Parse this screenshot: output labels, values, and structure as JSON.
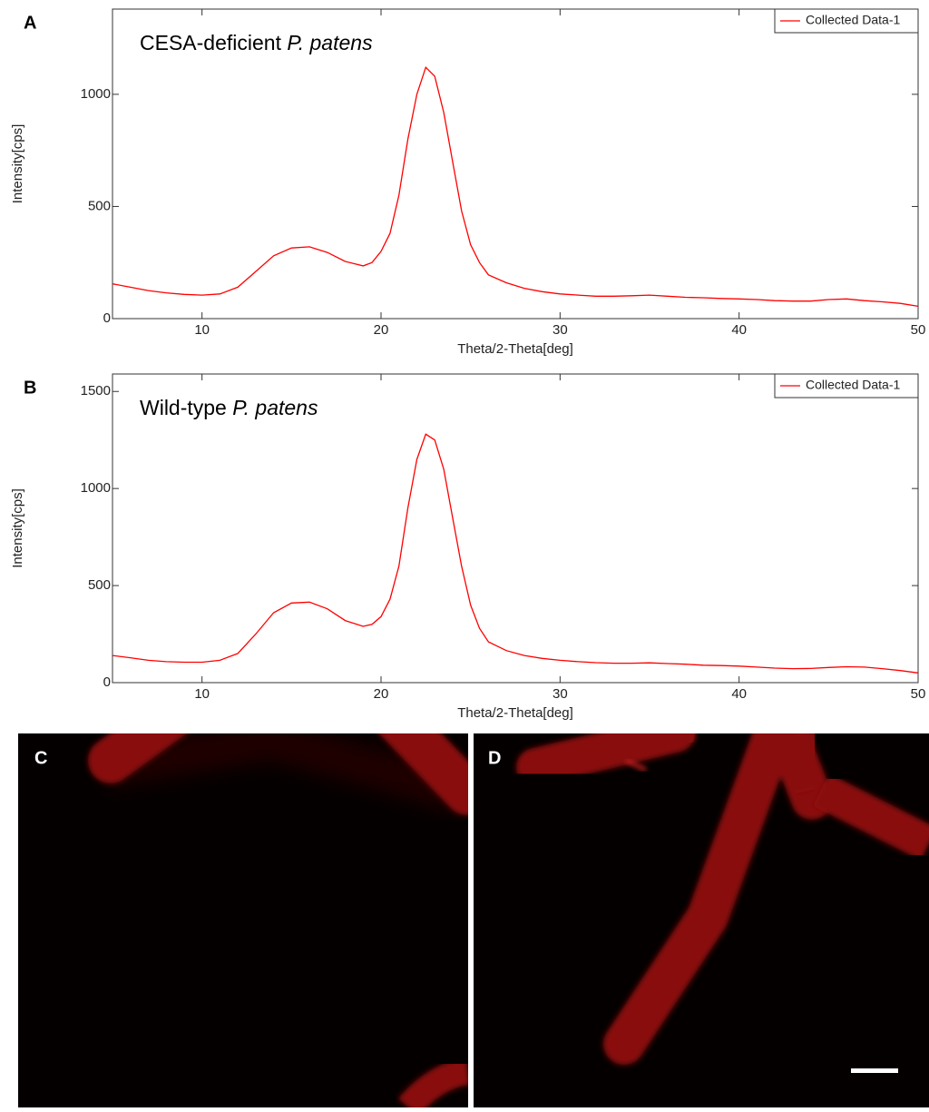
{
  "chart_data": [
    {
      "type": "line",
      "panel": "A",
      "title": "CESA-deficient",
      "title_italic": "P. patens",
      "x_label": "Theta/2-Theta[deg]",
      "y_label": "Intensity[cps]",
      "xlim": [
        5,
        50
      ],
      "ylim": [
        0,
        1380
      ],
      "xticks": [
        10,
        20,
        30,
        40,
        50
      ],
      "yticks": [
        0,
        500,
        1000
      ],
      "x": [
        5,
        6,
        7,
        8,
        9,
        10,
        11,
        12,
        13,
        14,
        15,
        16,
        17,
        18,
        19,
        19.5,
        20,
        20.5,
        21,
        21.5,
        22,
        22.5,
        23,
        23.5,
        24,
        24.5,
        25,
        25.5,
        26,
        27,
        28,
        29,
        30,
        31,
        32,
        33,
        34,
        35,
        36,
        37,
        38,
        39,
        40,
        41,
        42,
        43,
        44,
        45,
        46,
        47,
        48,
        49,
        50
      ],
      "series": [
        {
          "name": "Collected Data-1",
          "color": "#ff0000",
          "values": [
            155,
            140,
            125,
            115,
            108,
            105,
            110,
            140,
            210,
            280,
            315,
            320,
            295,
            255,
            235,
            250,
            300,
            380,
            550,
            800,
            1000,
            1120,
            1080,
            920,
            700,
            480,
            330,
            250,
            195,
            160,
            135,
            120,
            110,
            105,
            100,
            100,
            102,
            105,
            100,
            95,
            93,
            90,
            88,
            85,
            80,
            78,
            78,
            85,
            88,
            80,
            75,
            68,
            55
          ]
        }
      ]
    },
    {
      "type": "line",
      "panel": "B",
      "title": "Wild-type",
      "title_italic": "P. patens",
      "x_label": "Theta/2-Theta[deg]",
      "y_label": "Intensity[cps]",
      "xlim": [
        5,
        50
      ],
      "ylim": [
        0,
        1590
      ],
      "xticks": [
        10,
        20,
        30,
        40,
        50
      ],
      "yticks": [
        0,
        500,
        1000,
        1500
      ],
      "x": [
        5,
        6,
        7,
        8,
        9,
        10,
        11,
        12,
        13,
        14,
        15,
        16,
        17,
        18,
        19,
        19.5,
        20,
        20.5,
        21,
        21.5,
        22,
        22.5,
        23,
        23.5,
        24,
        24.5,
        25,
        25.5,
        26,
        27,
        28,
        29,
        30,
        31,
        32,
        33,
        34,
        35,
        36,
        37,
        38,
        39,
        40,
        41,
        42,
        43,
        44,
        45,
        46,
        47,
        48,
        49,
        50
      ],
      "series": [
        {
          "name": "Collected Data-1",
          "color": "#ff0000",
          "values": [
            140,
            128,
            115,
            108,
            105,
            105,
            115,
            150,
            250,
            360,
            410,
            415,
            380,
            320,
            290,
            300,
            340,
            430,
            600,
            900,
            1150,
            1280,
            1250,
            1100,
            850,
            600,
            400,
            280,
            210,
            165,
            140,
            125,
            115,
            108,
            103,
            100,
            100,
            102,
            98,
            95,
            90,
            88,
            85,
            80,
            75,
            72,
            73,
            78,
            82,
            80,
            72,
            62,
            50
          ]
        }
      ]
    }
  ],
  "images": [
    {
      "panel": "C"
    },
    {
      "panel": "D"
    }
  ]
}
